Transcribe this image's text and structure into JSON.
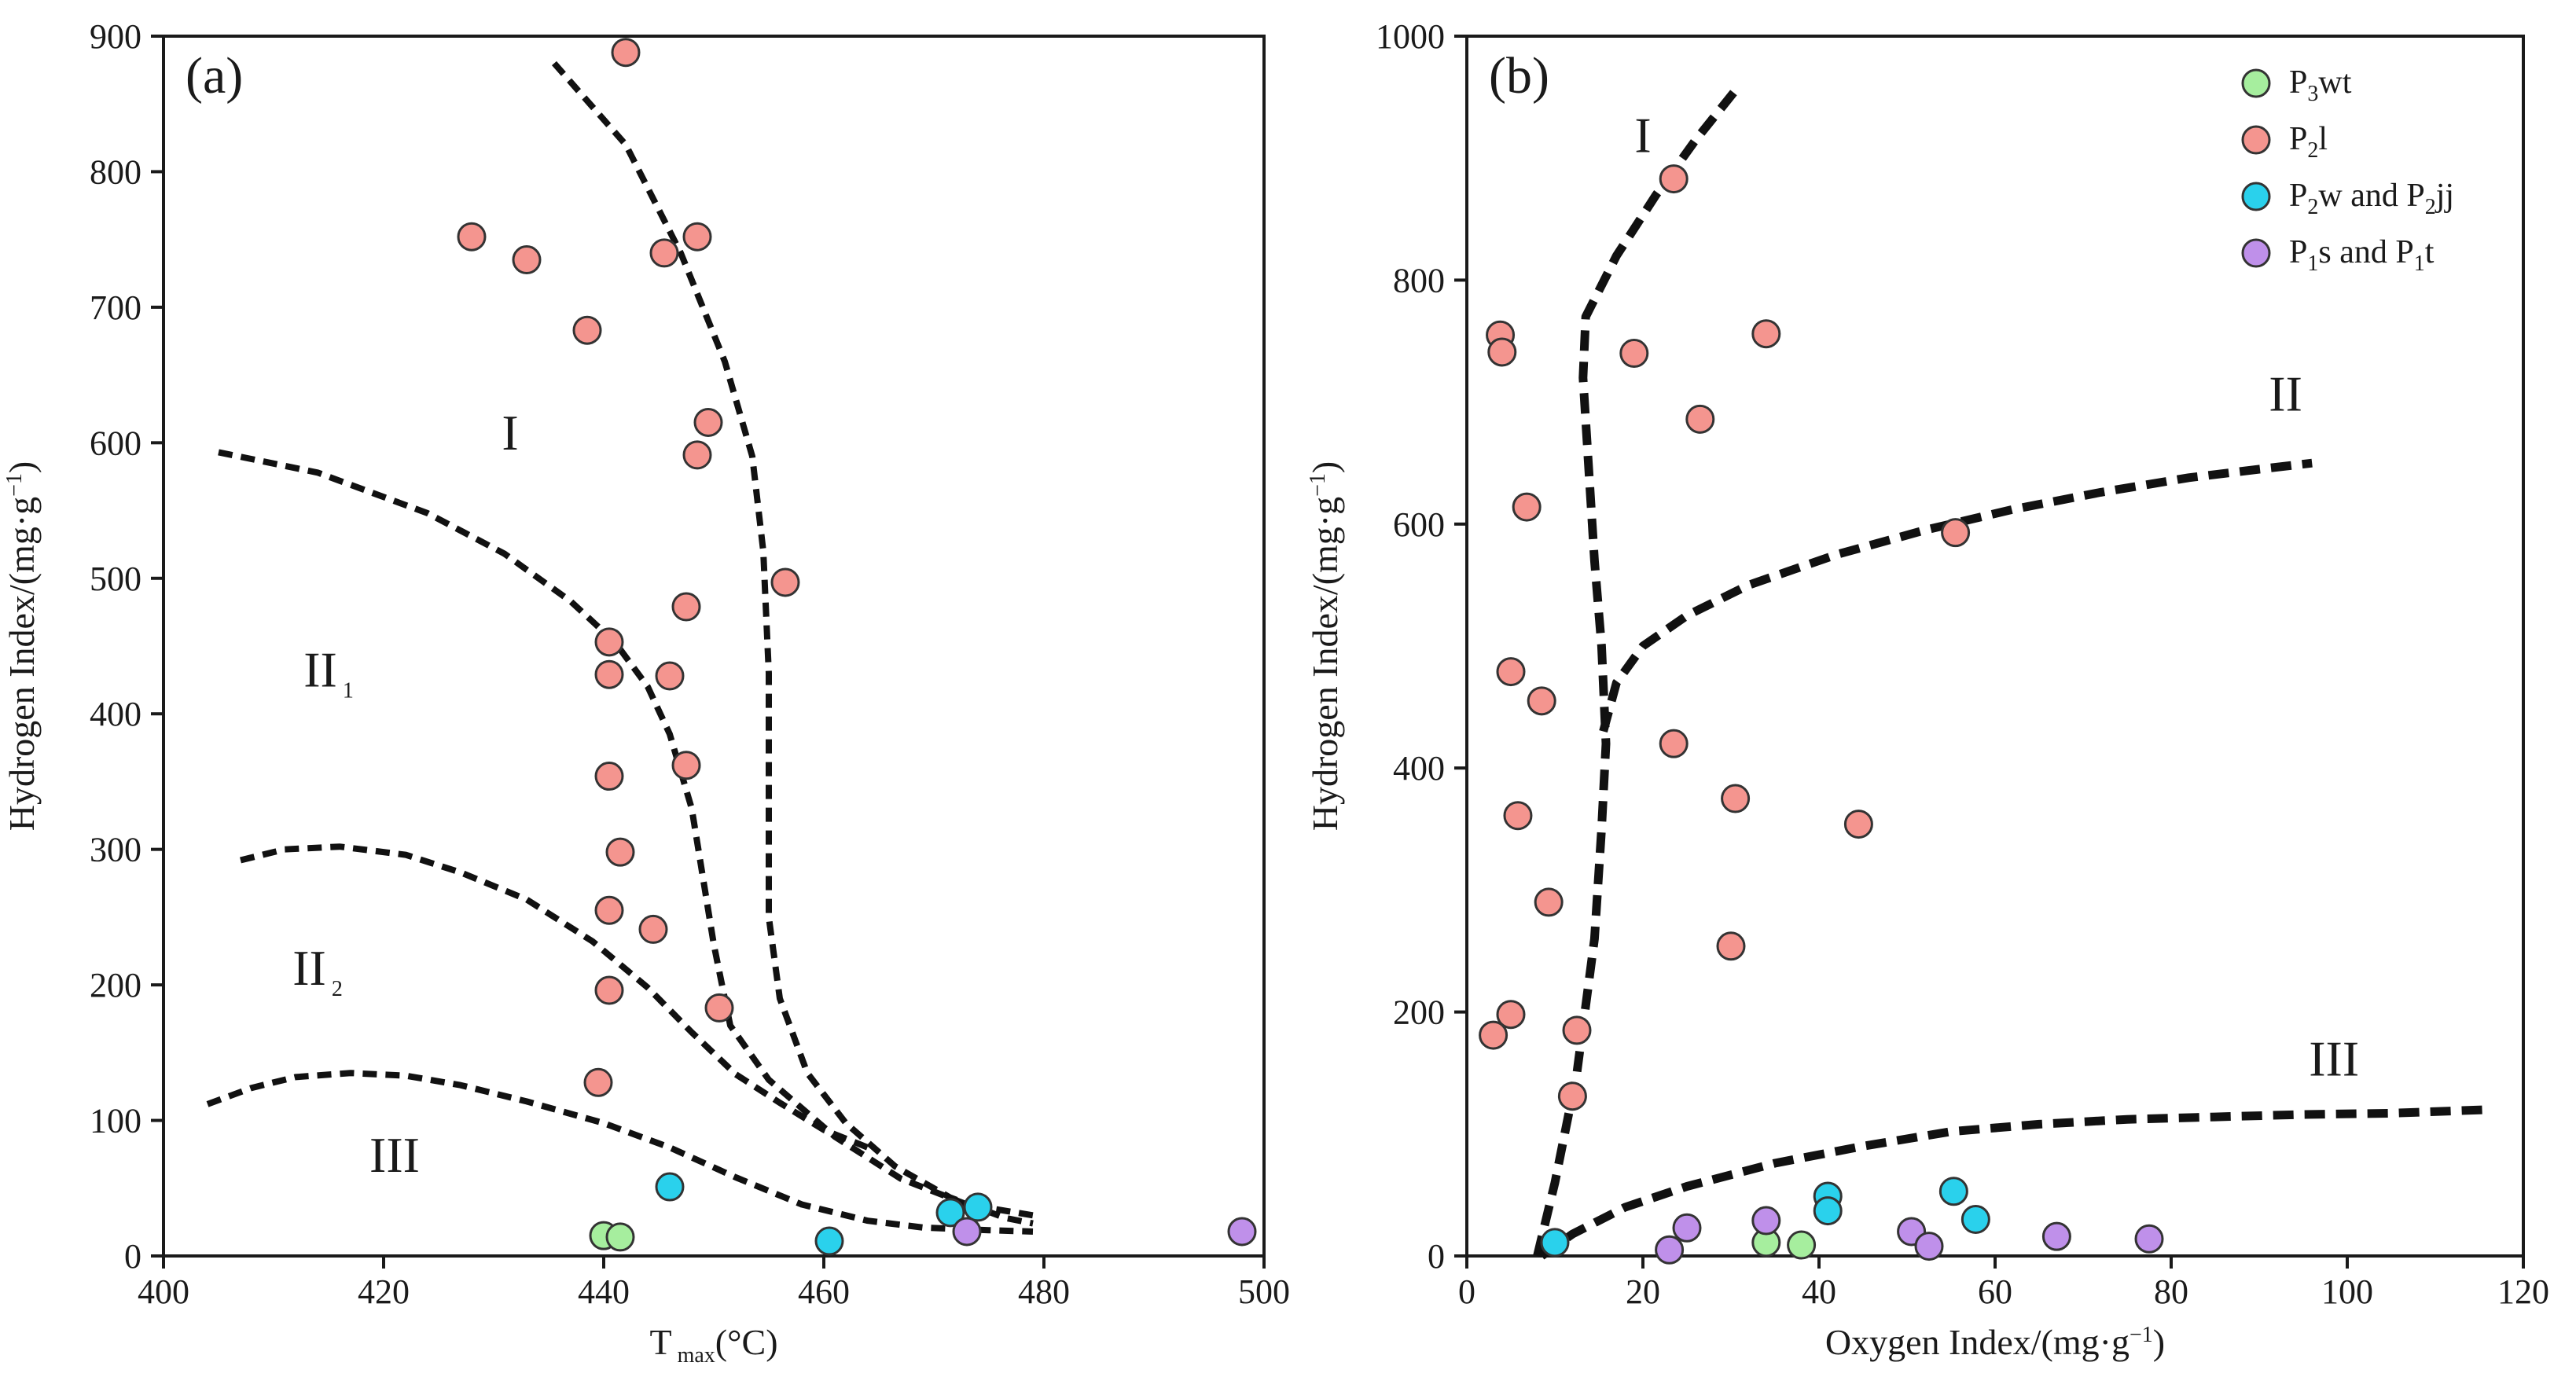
{
  "colors": {
    "P3wt": "#a6ee9e",
    "P2l": "#f4958f",
    "P2w_P2jj": "#2ad1ec",
    "P1s_P1t": "#bf90ea",
    "curve": "#111111"
  },
  "chart_data": [
    {
      "type": "scatter",
      "panel": "(a)",
      "xlabel": "T",
      "xlabel_sub": "max",
      "xlabel_unit": "(°C)",
      "ylabel": "Hydrogen Index/(mg·g",
      "ylabel_sup": "−1",
      "ylabel_end": ")",
      "xlim": [
        400,
        500
      ],
      "ylim": [
        0,
        900
      ],
      "xticks": [
        400,
        420,
        440,
        460,
        480,
        500
      ],
      "yticks": [
        0,
        100,
        200,
        300,
        400,
        500,
        600,
        700,
        800,
        900
      ],
      "xtick_labels": [
        "400",
        "420",
        "440",
        "460",
        "480",
        "500"
      ],
      "ytick_labels": [
        "0",
        "100",
        "200",
        "300",
        "400",
        "500",
        "600",
        "700",
        "800",
        "900"
      ],
      "regions": [
        {
          "label": "I",
          "sub": "",
          "x": 431.5,
          "y": 595
        },
        {
          "label": "II",
          "sub": "1",
          "x": 415,
          "y": 420
        },
        {
          "label": "II",
          "sub": "2",
          "x": 414,
          "y": 200
        },
        {
          "label": "III",
          "sub": "",
          "x": 421,
          "y": 62
        }
      ],
      "curves": [
        {
          "name": "boundary-I-steep",
          "points": [
            [
              435.5,
              880
            ],
            [
              442,
              820
            ],
            [
              447,
              740
            ],
            [
              451,
              660
            ],
            [
              453.5,
              590
            ],
            [
              454.5,
              520
            ],
            [
              455,
              430
            ],
            [
              455,
              330
            ],
            [
              455,
              250
            ],
            [
              456,
              190
            ],
            [
              458.5,
              135
            ],
            [
              462,
              98
            ],
            [
              466.5,
              66
            ],
            [
              471.5,
              43
            ],
            [
              476.5,
              28
            ],
            [
              479,
              24
            ]
          ]
        },
        {
          "name": "boundary-I-II1",
          "points": [
            [
              405,
              593
            ],
            [
              414,
              578
            ],
            [
              424,
              548
            ],
            [
              431,
              518
            ],
            [
              437,
              483
            ],
            [
              441,
              453
            ],
            [
              444,
              420
            ],
            [
              446,
              385
            ],
            [
              448,
              330
            ],
            [
              449,
              280
            ],
            [
              450,
              230
            ],
            [
              451.5,
              170
            ],
            [
              455,
              130
            ],
            [
              461,
              88
            ],
            [
              467,
              57
            ],
            [
              473,
              38
            ],
            [
              479,
              30
            ]
          ]
        },
        {
          "name": "boundary-II1-II2",
          "points": [
            [
              407,
              292
            ],
            [
              411,
              300
            ],
            [
              416,
              302
            ],
            [
              422,
              296
            ],
            [
              427,
              283
            ],
            [
              433,
              263
            ],
            [
              439,
              232
            ],
            [
              444,
              198
            ],
            [
              448,
              165
            ],
            [
              452,
              134
            ],
            [
              456,
              113
            ],
            [
              460,
              93
            ],
            [
              464,
              80
            ]
          ]
        },
        {
          "name": "boundary-II2-III",
          "points": [
            [
              404,
              112
            ],
            [
              408,
              124
            ],
            [
              412,
              132
            ],
            [
              417,
              135
            ],
            [
              422,
              133
            ],
            [
              427,
              126
            ],
            [
              433,
              114
            ],
            [
              440,
              98
            ],
            [
              446,
              80
            ],
            [
              452,
              58
            ],
            [
              458,
              38
            ],
            [
              464,
              26
            ],
            [
              469,
              21
            ],
            [
              475,
              19
            ],
            [
              479,
              18
            ]
          ]
        }
      ],
      "series": [
        {
          "name": "P3wt",
          "color_key": "P3wt",
          "points": [
            [
              440,
              15
            ],
            [
              441.5,
              14
            ]
          ]
        },
        {
          "name": "P2l",
          "color_key": "P2l",
          "points": [
            [
              442,
              888
            ],
            [
              428,
              752
            ],
            [
              433,
              735
            ],
            [
              445.5,
              740
            ],
            [
              448.5,
              752
            ],
            [
              438.5,
              683
            ],
            [
              449.5,
              615
            ],
            [
              448.5,
              591
            ],
            [
              456.5,
              497
            ],
            [
              440.5,
              453
            ],
            [
              447.5,
              479
            ],
            [
              440.5,
              429
            ],
            [
              446,
              428
            ],
            [
              440.5,
              354
            ],
            [
              447.5,
              362
            ],
            [
              441.5,
              298
            ],
            [
              440.5,
              255
            ],
            [
              444.5,
              241
            ],
            [
              440.5,
              196
            ],
            [
              450.5,
              183
            ],
            [
              439.5,
              128
            ]
          ]
        },
        {
          "name": "P2w and P2jj",
          "color_key": "P2w_P2jj",
          "points": [
            [
              446,
              51
            ],
            [
              460.5,
              11
            ],
            [
              471.5,
              32
            ],
            [
              474,
              36
            ]
          ]
        },
        {
          "name": "P1s and P1t",
          "color_key": "P1s_P1t",
          "points": [
            [
              473,
              18
            ],
            [
              498,
              18
            ]
          ]
        }
      ]
    },
    {
      "type": "scatter",
      "panel": "(b)",
      "xlabel": "Oxygen Index/(mg·g",
      "xlabel_sup": "−1",
      "xlabel_end": ")",
      "ylabel": "Hydrogen Index/(mg·g",
      "ylabel_sup": "−1",
      "ylabel_end": ")",
      "xlim": [
        0,
        120
      ],
      "ylim": [
        0,
        1000
      ],
      "xticks": [
        0,
        20,
        40,
        60,
        80,
        100,
        120
      ],
      "yticks": [
        0,
        200,
        400,
        600,
        800,
        1000
      ],
      "xtick_labels": [
        "0",
        "20",
        "40",
        "60",
        "80",
        "100",
        "120"
      ],
      "ytick_labels": [
        "0",
        "200",
        "400",
        "600",
        "800",
        "1000"
      ],
      "regions": [
        {
          "label": "I",
          "sub": "",
          "x": 20,
          "y": 905
        },
        {
          "label": "II",
          "sub": "",
          "x": 93,
          "y": 693
        },
        {
          "label": "III",
          "sub": "",
          "x": 98.5,
          "y": 148
        }
      ],
      "curves": [
        {
          "name": "type-I",
          "points": [
            [
              8,
              0
            ],
            [
              10,
              60
            ],
            [
              12.5,
              150
            ],
            [
              14.5,
              260
            ],
            [
              15.3,
              350
            ],
            [
              15.8,
              420
            ],
            [
              15.3,
              500
            ],
            [
              14.5,
              570
            ],
            [
              13.8,
              650
            ],
            [
              13.2,
              720
            ],
            [
              13.5,
              770
            ],
            [
              17,
              820
            ],
            [
              21.5,
              870
            ],
            [
              26,
              915
            ],
            [
              31,
              960
            ]
          ]
        },
        {
          "name": "type-II",
          "points": [
            [
              15.5,
              430
            ],
            [
              17,
              470
            ],
            [
              20,
              500
            ],
            [
              25,
              525
            ],
            [
              32,
              550
            ],
            [
              42,
              575
            ],
            [
              52,
              595
            ],
            [
              62,
              612
            ],
            [
              72,
              626
            ],
            [
              82,
              638
            ],
            [
              90,
              645
            ],
            [
              96,
              650
            ]
          ]
        },
        {
          "name": "type-III",
          "points": [
            [
              8.5,
              0
            ],
            [
              12,
              18
            ],
            [
              18,
              40
            ],
            [
              25,
              57
            ],
            [
              35,
              76
            ],
            [
              45,
              90
            ],
            [
              55,
              102
            ],
            [
              65,
              108
            ],
            [
              75,
              112
            ],
            [
              85,
              114
            ],
            [
              95,
              116
            ],
            [
              105,
              117
            ],
            [
              116,
              120
            ]
          ]
        }
      ],
      "series": [
        {
          "name": "P3wt",
          "label_base": "P",
          "label_sub": "3",
          "label_rest": "wt",
          "color_key": "P3wt",
          "points": [
            [
              34,
              11
            ],
            [
              38,
              9
            ]
          ]
        },
        {
          "name": "P2l",
          "label_base": "P",
          "label_sub": "2",
          "label_rest": "l",
          "color_key": "P2l",
          "points": [
            [
              23.5,
              883
            ],
            [
              3.8,
              755
            ],
            [
              4,
              741
            ],
            [
              19,
              740
            ],
            [
              34,
              756
            ],
            [
              26.5,
              686
            ],
            [
              6.8,
              614
            ],
            [
              55.5,
              593
            ],
            [
              5,
              479
            ],
            [
              8.5,
              455
            ],
            [
              23.5,
              420
            ],
            [
              30.5,
              375
            ],
            [
              44.5,
              354
            ],
            [
              5.8,
              361
            ],
            [
              9.3,
              290
            ],
            [
              30,
              254
            ],
            [
              5,
              198
            ],
            [
              3,
              181
            ],
            [
              12.5,
              185
            ],
            [
              12,
              131
            ]
          ]
        },
        {
          "name": "P2w and P2jj",
          "label_base": "P",
          "label_sub": "2",
          "label_rest": "w and P",
          "label_sub2": "2",
          "label_rest2": "jj",
          "color_key": "P2w_P2jj",
          "points": [
            [
              10,
              11
            ],
            [
              41,
              49
            ],
            [
              41,
              37
            ],
            [
              55.3,
              53
            ],
            [
              57.8,
              30
            ]
          ]
        },
        {
          "name": "P1s and P1t",
          "label_base": "P",
          "label_sub": "1",
          "label_rest": "s and P",
          "label_sub2": "1",
          "label_rest2": "t",
          "color_key": "P1s_P1t",
          "points": [
            [
              23,
              5
            ],
            [
              25,
              23
            ],
            [
              34,
              29
            ],
            [
              50.5,
              20
            ],
            [
              52.5,
              8
            ],
            [
              67,
              16
            ],
            [
              77.5,
              14
            ]
          ]
        }
      ],
      "legend": {
        "position": "top-right",
        "entries": [
          {
            "base": "P",
            "sub": "3",
            "rest": "wt",
            "sub2": "",
            "rest2": "",
            "color_key": "P3wt"
          },
          {
            "base": "P",
            "sub": "2",
            "rest": "l",
            "sub2": "",
            "rest2": "",
            "color_key": "P2l"
          },
          {
            "base": "P",
            "sub": "2",
            "rest": "w and P",
            "sub2": "2",
            "rest2": "jj",
            "color_key": "P2w_P2jj"
          },
          {
            "base": "P",
            "sub": "1",
            "rest": "s and P",
            "sub2": "1",
            "rest2": "t",
            "color_key": "P1s_P1t"
          }
        ]
      }
    }
  ]
}
